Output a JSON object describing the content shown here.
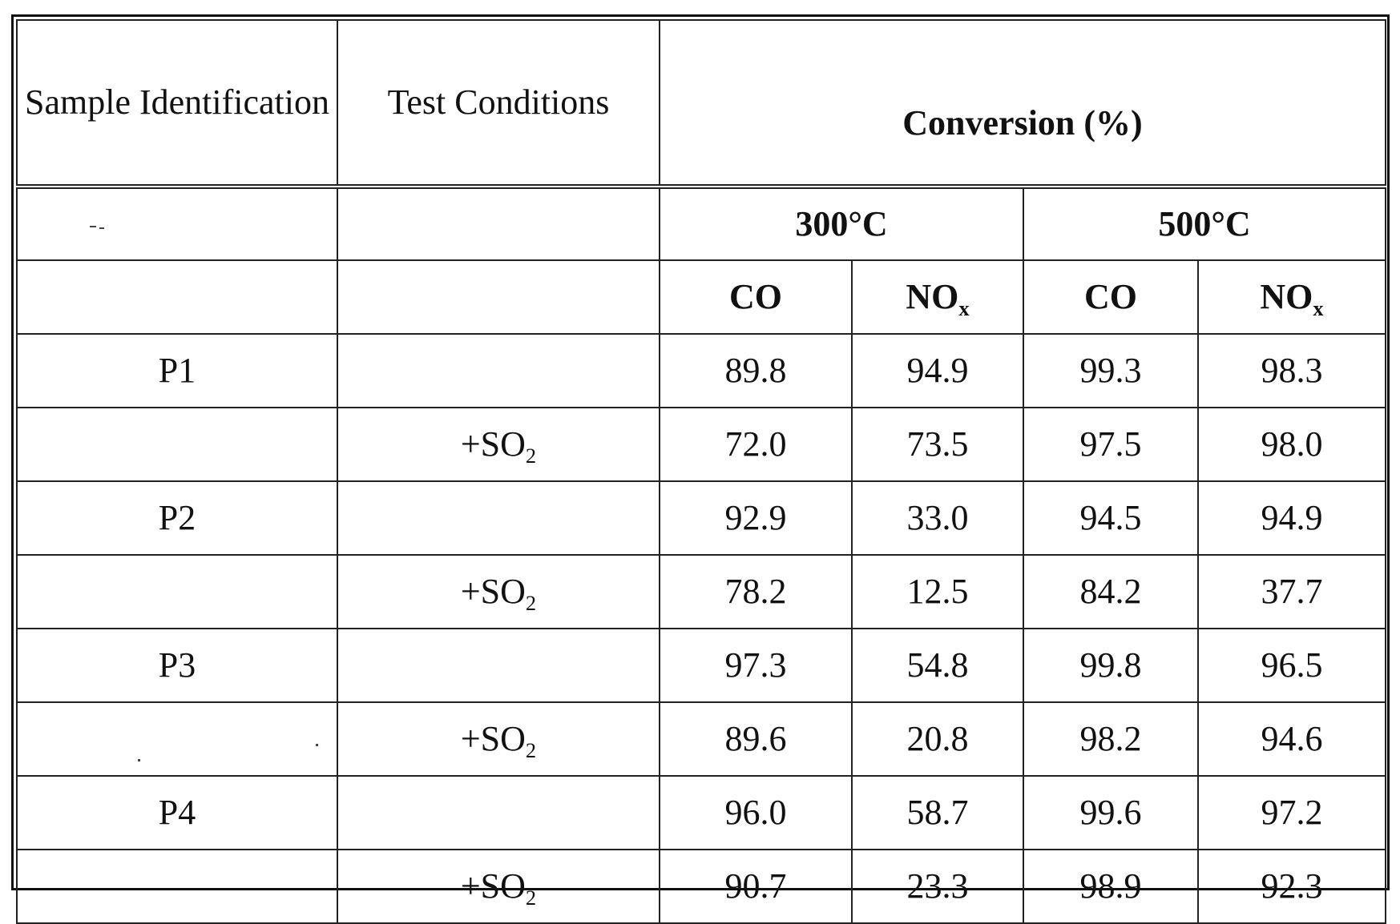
{
  "headers": {
    "sample": "Sample Identification",
    "test": "Test Conditions",
    "conversion": "Conversion (%)"
  },
  "temperatures": [
    "300°C",
    "500°C"
  ],
  "gases": [
    {
      "main": "CO",
      "sub": ""
    },
    {
      "main": "NO",
      "sub": "x"
    },
    {
      "main": "CO",
      "sub": ""
    },
    {
      "main": "NO",
      "sub": "x"
    }
  ],
  "rows": [
    {
      "sample": "P1",
      "cond_main": "",
      "cond_sub": "",
      "values": [
        "89.8",
        "94.9",
        "99.3",
        "98.3"
      ]
    },
    {
      "sample": "",
      "cond_main": "+SO",
      "cond_sub": "2",
      "values": [
        "72.0",
        "73.5",
        "97.5",
        "98.0"
      ]
    },
    {
      "sample": "P2",
      "cond_main": "",
      "cond_sub": "",
      "values": [
        "92.9",
        "33.0",
        "94.5",
        "94.9"
      ]
    },
    {
      "sample": "",
      "cond_main": "+SO",
      "cond_sub": "2",
      "values": [
        "78.2",
        "12.5",
        "84.2",
        "37.7"
      ]
    },
    {
      "sample": "P3",
      "cond_main": "",
      "cond_sub": "",
      "values": [
        "97.3",
        "54.8",
        "99.8",
        "96.5"
      ]
    },
    {
      "sample": "",
      "cond_main": "+SO",
      "cond_sub": "2",
      "values": [
        "89.6",
        "20.8",
        "98.2",
        "94.6"
      ]
    },
    {
      "sample": "P4",
      "cond_main": "",
      "cond_sub": "",
      "values": [
        "96.0",
        "58.7",
        "99.6",
        "97.2"
      ]
    },
    {
      "sample": "",
      "cond_main": "+SO",
      "cond_sub": "2",
      "values": [
        "90.7",
        "23.3",
        "98.9",
        "92.3"
      ]
    }
  ]
}
